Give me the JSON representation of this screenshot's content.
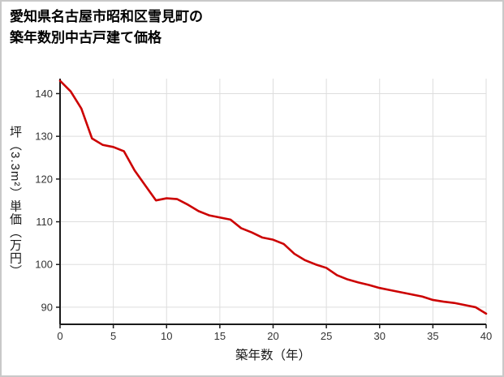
{
  "title": {
    "line1": "愛知県名古屋市昭和区雪見町の",
    "line2": "築年数別中古戸建て価格"
  },
  "chart_data": {
    "type": "line",
    "title": "愛知県名古屋市昭和区雪見町の築年数別中古戸建て価格",
    "xlabel": "築年数（年）",
    "ylabel": "坪（3.3m²）単価（万円）",
    "x": [
      0,
      1,
      2,
      3,
      4,
      5,
      6,
      7,
      8,
      9,
      10,
      11,
      12,
      13,
      14,
      15,
      16,
      17,
      18,
      19,
      20,
      21,
      22,
      23,
      24,
      25,
      26,
      27,
      28,
      29,
      30,
      31,
      32,
      33,
      34,
      35,
      36,
      37,
      38,
      39,
      40
    ],
    "values": [
      143,
      140.5,
      136.5,
      129.5,
      128,
      127.5,
      126.5,
      122,
      118.5,
      115,
      115.5,
      115.3,
      114,
      112.5,
      111.5,
      111,
      110.5,
      108.5,
      107.5,
      106.3,
      105.8,
      104.8,
      102.5,
      101,
      100,
      99.2,
      97.5,
      96.5,
      95.8,
      95.2,
      94.5,
      94,
      93.5,
      93,
      92.5,
      91.7,
      91.3,
      91,
      90.5,
      90,
      88.5
    ],
    "x_ticks": [
      0,
      5,
      10,
      15,
      20,
      25,
      30,
      35,
      40
    ],
    "y_ticks": [
      90,
      100,
      110,
      120,
      130,
      140
    ],
    "xlim": [
      0,
      40
    ],
    "ylim": [
      86,
      143.5
    ],
    "grid": true,
    "legend": "none",
    "line_color": "#cc0000",
    "axis_color": "#1a1a1a",
    "grid_color": "#dddddd",
    "tick_label_color": "#333333"
  }
}
